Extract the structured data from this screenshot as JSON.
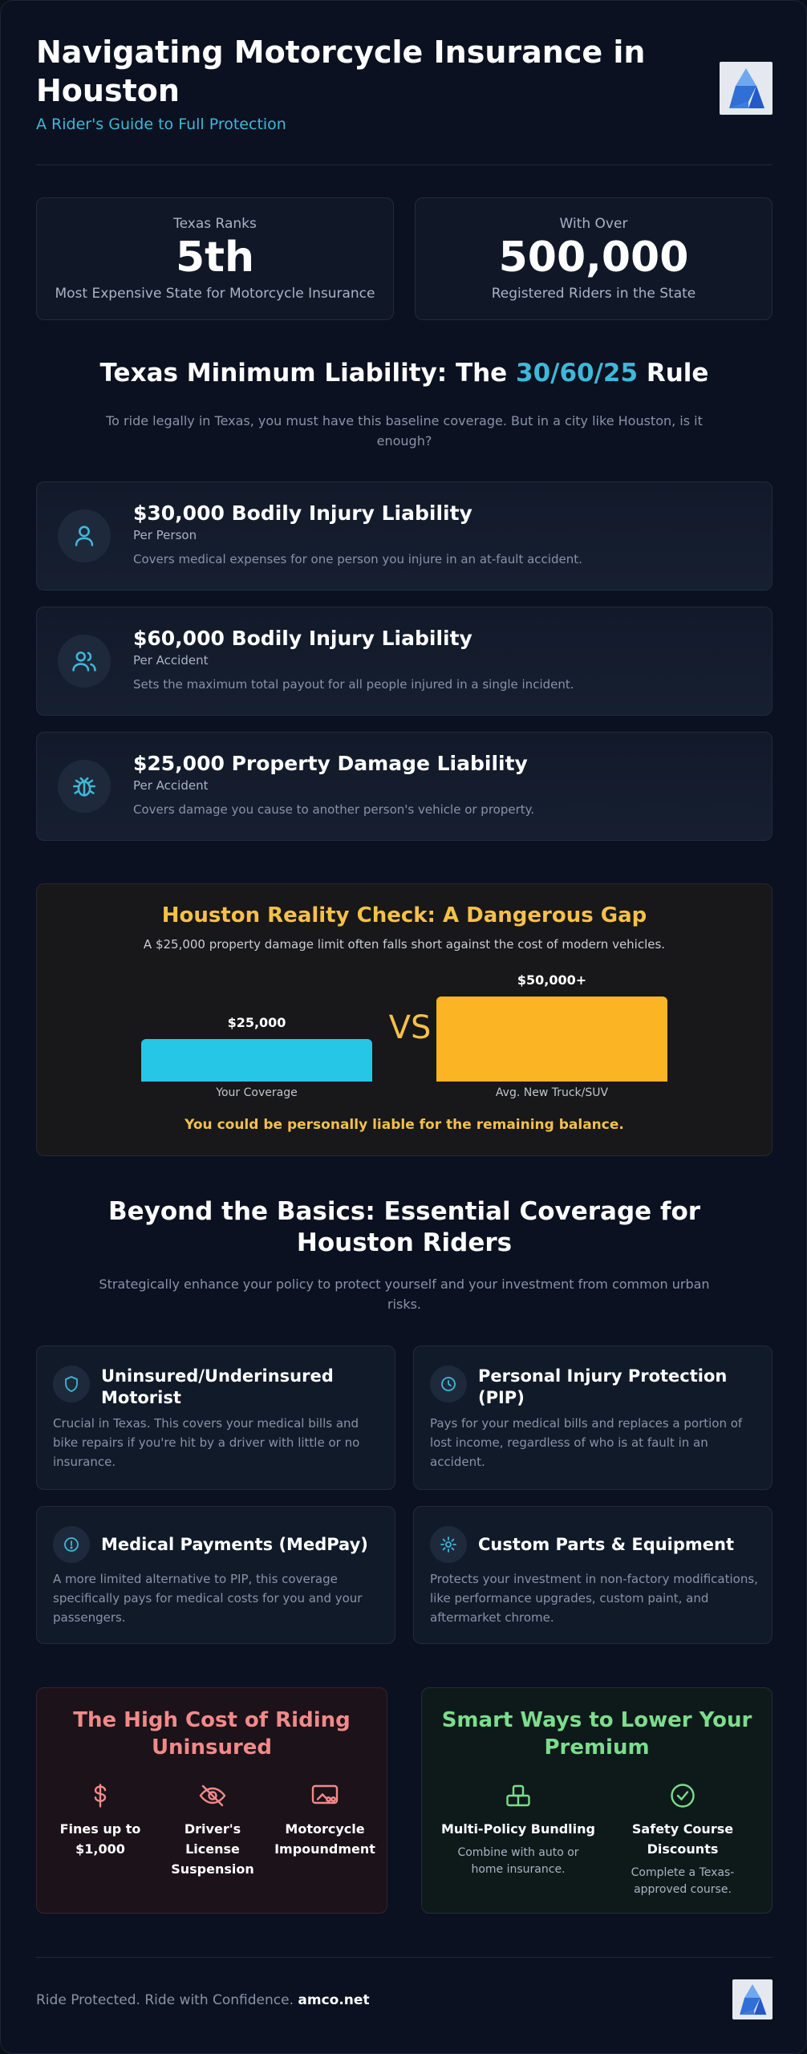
{
  "header": {
    "title": "Navigating Motorcycle Insurance in Houston",
    "subtitle": "A Rider's Guide to Full Protection"
  },
  "stats": [
    {
      "kicker": "Texas Ranks",
      "value": "5th",
      "caption": "Most Expensive State for Motorcycle Insurance"
    },
    {
      "kicker": "With Over",
      "value": "500,000",
      "caption": "Registered Riders in the State"
    }
  ],
  "liability": {
    "title_prefix": "Texas Minimum Liability: The ",
    "title_accent": "30/60/25",
    "title_suffix": " Rule",
    "description": "To ride legally in Texas, you must have this baseline coverage. But in a city like Houston, is it enough?",
    "rules": [
      {
        "title": "$30,000 Bodily Injury Liability",
        "sub": "Per Person",
        "desc": "Covers medical expenses for one person you injure in an at-fault accident.",
        "icon": "user-icon"
      },
      {
        "title": "$60,000 Bodily Injury Liability",
        "sub": "Per Accident",
        "desc": "Sets the maximum total payout for all people injured in a single incident.",
        "icon": "users-icon"
      },
      {
        "title": "$25,000 Property Damage Liability",
        "sub": "Per Accident",
        "desc": "Covers damage you cause to another person's vehicle or property.",
        "icon": "bug-icon"
      }
    ]
  },
  "reality": {
    "title": "Houston Reality Check: A Dangerous Gap",
    "description": "A $25,000 property damage limit often falls short against the cost of modern vehicles.",
    "vs": "VS",
    "warning": "You could be personally liable for the remaining balance."
  },
  "chart_data": {
    "type": "bar",
    "categories": [
      "Your Coverage",
      "Avg. New Truck/SUV"
    ],
    "value_labels": [
      "$25,000",
      "$50,000+"
    ],
    "values": [
      25000,
      50000
    ],
    "colors": [
      "#26c6e6",
      "#fbb424"
    ],
    "ylim": [
      0,
      50000
    ]
  },
  "beyond": {
    "title": "Beyond the Basics: Essential Coverage for Houston Riders",
    "description": "Strategically enhance your policy to protect yourself and your investment from common urban risks.",
    "cards": [
      {
        "title": "Uninsured/Underinsured Motorist",
        "desc": "Crucial in Texas. This covers your medical bills and bike repairs if you're hit by a driver with little or no insurance.",
        "icon": "shield-icon"
      },
      {
        "title": "Personal Injury Protection (PIP)",
        "desc": "Pays for your medical bills and replaces a portion of lost income, regardless of who is at fault in an accident.",
        "icon": "clock-icon"
      },
      {
        "title": "Medical Payments (MedPay)",
        "desc": "A more limited alternative to PIP, this coverage specifically pays for medical costs for you and your passengers.",
        "icon": "alert-circle-icon"
      },
      {
        "title": "Custom Parts & Equipment",
        "desc": "Protects your investment in non-factory modifications, like performance upgrades, custom paint, and aftermarket chrome.",
        "icon": "gear-icon"
      }
    ]
  },
  "uninsured": {
    "title": "The High Cost of Riding Uninsured",
    "items": [
      {
        "label": "Fines up to $1,000",
        "icon": "dollar-icon"
      },
      {
        "label": "Driver's License Suspension",
        "icon": "eye-off-icon"
      },
      {
        "label": "Motorcycle Impoundment",
        "icon": "truck-icon"
      }
    ]
  },
  "savings": {
    "title": "Smart Ways to Lower Your Premium",
    "items": [
      {
        "label": "Multi-Policy Bundling",
        "desc": "Combine with auto or home insurance.",
        "icon": "stack-icon"
      },
      {
        "label": "Safety Course Discounts",
        "desc": "Complete a Texas-approved course.",
        "icon": "check-circle-icon"
      }
    ]
  },
  "footer": {
    "tagline": "Ride Protected. Ride with Confidence.",
    "site": "amco.net"
  },
  "colors": {
    "accent": "#3fb8d8",
    "warning": "#f5c04a",
    "danger": "#f08a8a",
    "success": "#7ddc8e"
  }
}
